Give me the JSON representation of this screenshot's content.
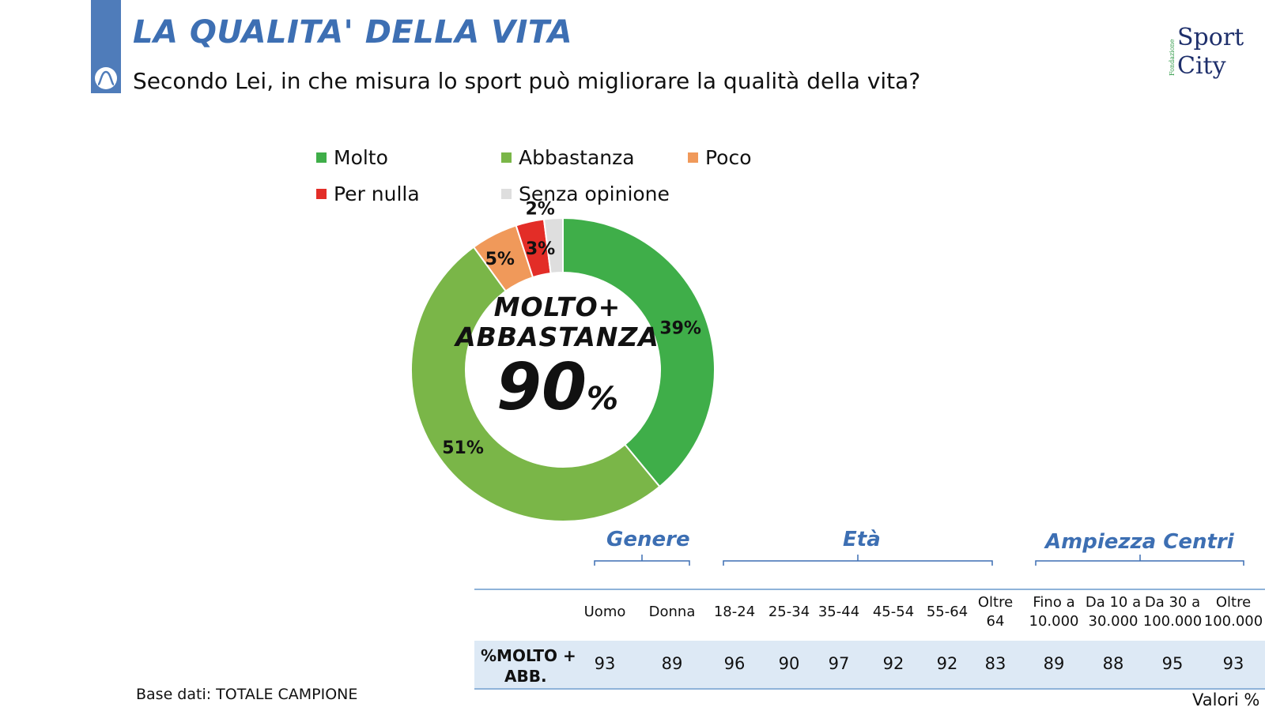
{
  "header": {
    "title": "LA QUALITA' DELLA VITA",
    "question": "Secondo Lei, in che misura lo sport può migliorare la qualità della vita?",
    "brand_line1": "Sport",
    "brand_line2": "City",
    "brand_prefix": "Fondazione"
  },
  "chart_data": {
    "type": "pie",
    "subtype": "donut",
    "categories": [
      "Molto",
      "Abbastanza",
      "Poco",
      "Per nulla",
      "Senza opinione"
    ],
    "values": [
      39,
      51,
      5,
      3,
      2
    ],
    "value_labels": [
      "39%",
      "51%",
      "5%",
      "3%",
      "2%"
    ],
    "colors": [
      "#3fae49",
      "#7ab648",
      "#f0995a",
      "#e32d27",
      "#dedede"
    ],
    "legend_position": "top",
    "center": {
      "line1": "MOLTO+",
      "line2": "ABBASTANZA",
      "value": "90",
      "unit": "%"
    }
  },
  "breakdown": {
    "groups": [
      {
        "label": "Genere"
      },
      {
        "label": "Età"
      },
      {
        "label": "Ampiezza Centri"
      }
    ],
    "row_label_line1": "%MOLTO +",
    "row_label_line2": "ABB.",
    "columns": [
      {
        "h1": "Uomo",
        "h2": "",
        "value": "93"
      },
      {
        "h1": "Donna",
        "h2": "",
        "value": "89"
      },
      {
        "h1": "18-24",
        "h2": "",
        "value": "96"
      },
      {
        "h1": "25-34",
        "h2": "",
        "value": "90"
      },
      {
        "h1": "35-44",
        "h2": "",
        "value": "97"
      },
      {
        "h1": "45-54",
        "h2": "",
        "value": "92"
      },
      {
        "h1": "55-64",
        "h2": "",
        "value": "92"
      },
      {
        "h1": "Oltre",
        "h2": "64",
        "value": "83"
      },
      {
        "h1": "Fino a",
        "h2": "10.000",
        "value": "89"
      },
      {
        "h1": "Da 10 a",
        "h2": "30.000",
        "value": "88"
      },
      {
        "h1": "Da 30 a",
        "h2": "100.000",
        "value": "95"
      },
      {
        "h1": "Oltre",
        "h2": "100.000",
        "value": "93"
      }
    ]
  },
  "footer": {
    "base": "Base dati: TOTALE CAMPIONE",
    "values_note": "Valori %"
  }
}
